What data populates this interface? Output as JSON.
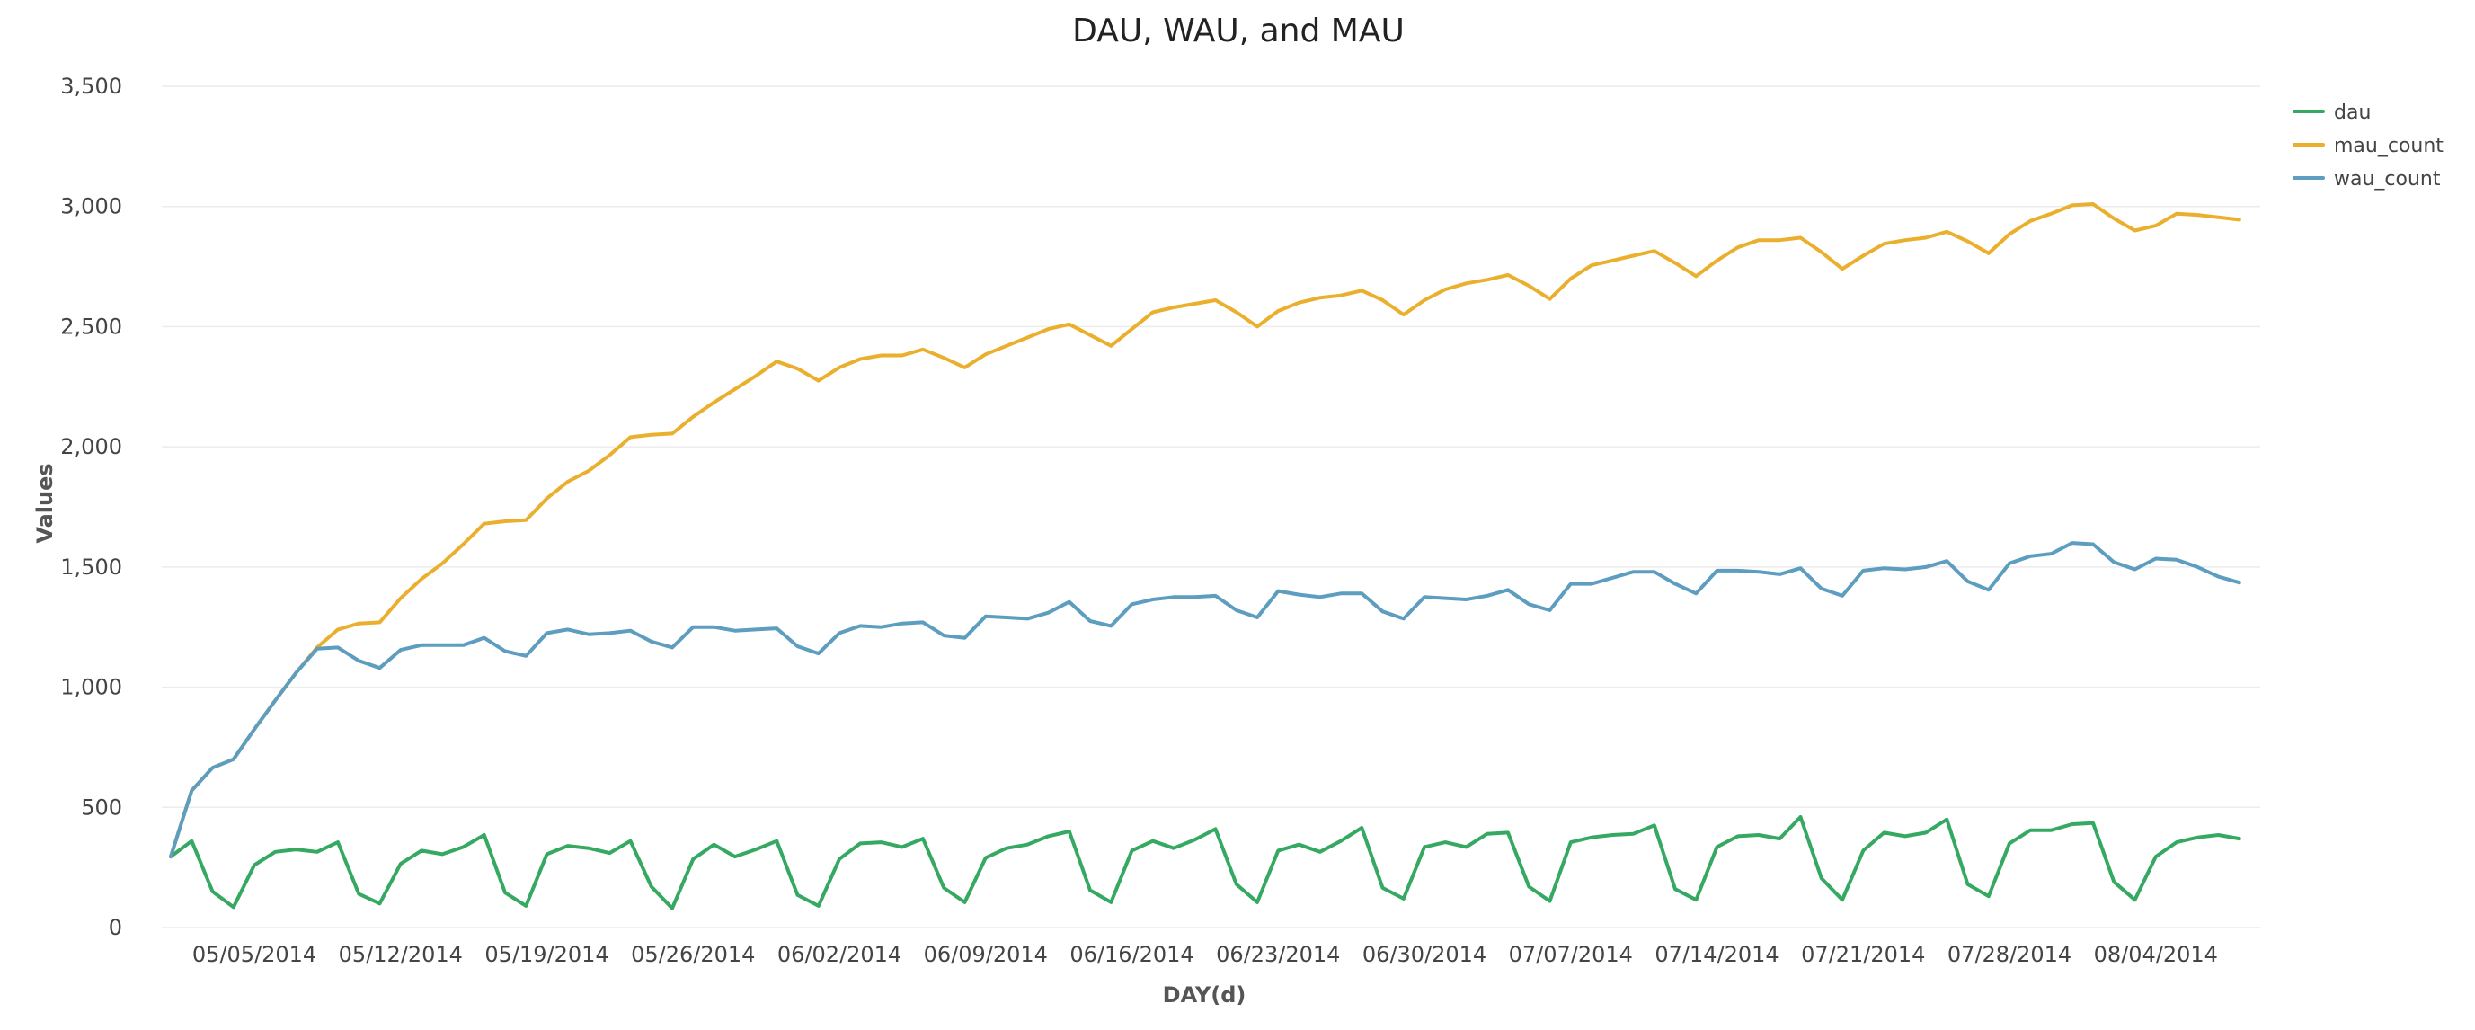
{
  "chart_data": {
    "type": "line",
    "title": "DAU, WAU, and MAU",
    "xlabel": "DAY(d)",
    "ylabel": "Values",
    "ylim": [
      0,
      3500
    ],
    "yticks": [
      "0",
      "500",
      "1,000",
      "1,500",
      "2,000",
      "2,500",
      "3,000",
      "3,500"
    ],
    "x_start": "2014-05-01",
    "x_end": "2014-08-09",
    "xticks": [
      "05/05/2014",
      "05/12/2014",
      "05/19/2014",
      "05/26/2014",
      "06/02/2014",
      "06/09/2014",
      "06/16/2014",
      "06/23/2014",
      "06/30/2014",
      "07/07/2014",
      "07/14/2014",
      "07/21/2014",
      "07/28/2014",
      "08/04/2014"
    ],
    "grid": true,
    "legend_position": "top-right",
    "series": [
      {
        "name": "dau",
        "color": "#35a862",
        "values": [
          295,
          360,
          150,
          85,
          260,
          315,
          325,
          315,
          355,
          140,
          100,
          265,
          320,
          305,
          335,
          385,
          145,
          90,
          305,
          340,
          330,
          310,
          360,
          170,
          80,
          285,
          345,
          295,
          325,
          360,
          135,
          90,
          285,
          350,
          355,
          335,
          370,
          165,
          105,
          290,
          330,
          345,
          380,
          400,
          155,
          105,
          320,
          360,
          330,
          365,
          410,
          180,
          105,
          320,
          345,
          315,
          360,
          415,
          165,
          120,
          335,
          355,
          335,
          390,
          395,
          170,
          110,
          355,
          375,
          385,
          390,
          425,
          160,
          115,
          335,
          380,
          385,
          370,
          460,
          205,
          115,
          320,
          395,
          380,
          395,
          450,
          180,
          130,
          350,
          405,
          405,
          430,
          435,
          190,
          115,
          295,
          355,
          375,
          385,
          370
        ]
      },
      {
        "name": "mau_count",
        "color": "#ebaf2e",
        "values": [
          295,
          570,
          665,
          700,
          825,
          945,
          1060,
          1165,
          1240,
          1265,
          1270,
          1370,
          1450,
          1515,
          1595,
          1680,
          1690,
          1695,
          1785,
          1855,
          1900,
          1965,
          2040,
          2050,
          2055,
          2125,
          2185,
          2240,
          2295,
          2355,
          2325,
          2275,
          2330,
          2365,
          2380,
          2380,
          2405,
          2370,
          2330,
          2385,
          2420,
          2455,
          2490,
          2510,
          2465,
          2420,
          2490,
          2560,
          2580,
          2595,
          2610,
          2560,
          2500,
          2565,
          2600,
          2620,
          2630,
          2650,
          2610,
          2550,
          2610,
          2655,
          2680,
          2695,
          2715,
          2670,
          2615,
          2700,
          2755,
          2775,
          2795,
          2815,
          2765,
          2710,
          2775,
          2830,
          2860,
          2860,
          2870,
          2810,
          2740,
          2795,
          2845,
          2860,
          2870,
          2895,
          2855,
          2805,
          2885,
          2940,
          2970,
          3005,
          3010,
          2950,
          2900,
          2920,
          2970,
          2965,
          2955,
          2945
        ]
      },
      {
        "name": "wau_count",
        "color": "#5d9dbf",
        "values": [
          295,
          570,
          665,
          700,
          825,
          945,
          1060,
          1160,
          1165,
          1110,
          1080,
          1155,
          1175,
          1175,
          1175,
          1205,
          1150,
          1130,
          1225,
          1240,
          1220,
          1225,
          1235,
          1190,
          1165,
          1250,
          1250,
          1235,
          1240,
          1245,
          1170,
          1140,
          1225,
          1255,
          1250,
          1265,
          1270,
          1215,
          1205,
          1295,
          1290,
          1285,
          1310,
          1355,
          1275,
          1255,
          1345,
          1365,
          1375,
          1375,
          1380,
          1320,
          1290,
          1400,
          1385,
          1375,
          1390,
          1390,
          1315,
          1285,
          1375,
          1370,
          1365,
          1380,
          1405,
          1345,
          1320,
          1430,
          1430,
          1455,
          1480,
          1480,
          1430,
          1390,
          1485,
          1485,
          1480,
          1470,
          1495,
          1410,
          1380,
          1485,
          1495,
          1490,
          1500,
          1525,
          1440,
          1405,
          1515,
          1545,
          1555,
          1600,
          1595,
          1520,
          1490,
          1535,
          1530,
          1500,
          1460,
          1435
        ]
      }
    ]
  }
}
